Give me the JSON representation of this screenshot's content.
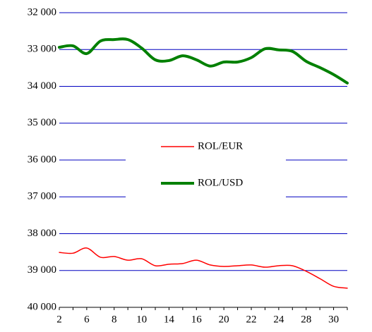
{
  "chart_data": {
    "type": "line",
    "categories": [
      "2",
      null,
      "6",
      null,
      "8",
      null,
      "10",
      null,
      "14",
      null,
      "16",
      null,
      "20",
      null,
      "22",
      null,
      "24",
      null,
      "28",
      null,
      "30",
      null
    ],
    "series": [
      {
        "name": "ROL/EUR",
        "color": "#ff0000",
        "values": [
          38510,
          38530,
          38390,
          38640,
          38620,
          38720,
          38680,
          38870,
          38830,
          38810,
          38720,
          38850,
          38890,
          38870,
          38850,
          38910,
          38870,
          38870,
          39020,
          39220,
          39430,
          39480
        ]
      },
      {
        "name": "ROL/USD",
        "color": "#008000",
        "values": [
          32940,
          32900,
          33110,
          32770,
          32730,
          32730,
          32960,
          33280,
          33300,
          33170,
          33280,
          33450,
          33340,
          33340,
          33220,
          32980,
          33010,
          33050,
          33320,
          33490,
          33680,
          33910
        ]
      }
    ],
    "ylim": [
      40000,
      32000
    ],
    "yticks": [
      {
        "value": 32000,
        "label": "32 000"
      },
      {
        "value": 33000,
        "label": "33 000"
      },
      {
        "value": 34000,
        "label": "34 000"
      },
      {
        "value": 35000,
        "label": "35 000"
      },
      {
        "value": 36000,
        "label": "36 000"
      },
      {
        "value": 37000,
        "label": "37 000"
      },
      {
        "value": 38000,
        "label": "38 000"
      },
      {
        "value": 39000,
        "label": "39 000"
      },
      {
        "value": 40000,
        "label": "40 000"
      }
    ],
    "grid": true
  }
}
